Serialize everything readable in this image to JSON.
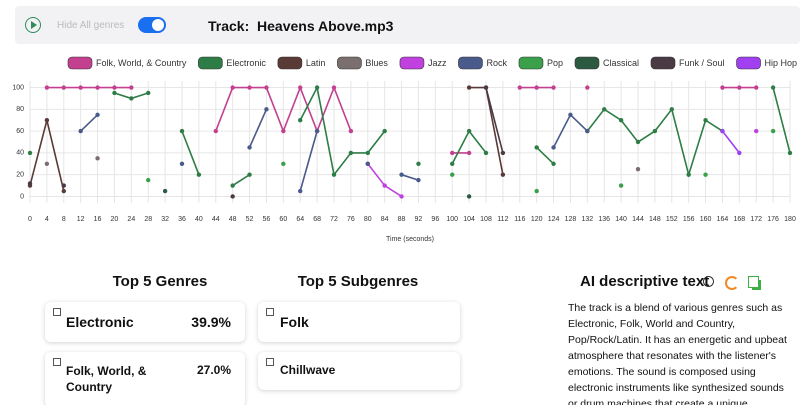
{
  "header": {
    "toggle_label": "Hide All genres",
    "track_label": "Track:",
    "track_name": "Heavens Above.mp3"
  },
  "chart_data": {
    "type": "line",
    "x_label": "Time (seconds)",
    "x": [
      0,
      4,
      8,
      12,
      16,
      20,
      24,
      28,
      32,
      36,
      40,
      44,
      48,
      52,
      56,
      60,
      64,
      68,
      72,
      76,
      80,
      84,
      88,
      92,
      96,
      100,
      104,
      108,
      112,
      116,
      120,
      124,
      128,
      132,
      136,
      140,
      144,
      148,
      152,
      156,
      160,
      164,
      168,
      172,
      176,
      180
    ],
    "xlim": [
      0,
      180
    ],
    "xticks": [
      0,
      4,
      8,
      12,
      16,
      20,
      24,
      28,
      32,
      36,
      40,
      44,
      48,
      52,
      56,
      60,
      64,
      68,
      72,
      76,
      80,
      84,
      88,
      92,
      96,
      100,
      104,
      108,
      112,
      116,
      120,
      124,
      128,
      132,
      136,
      140,
      144,
      148,
      152,
      156,
      160,
      164,
      168,
      172,
      176,
      180
    ],
    "ylim": [
      -6,
      106
    ],
    "yticks": [
      0,
      20,
      40,
      60,
      80,
      100
    ],
    "grid": true,
    "series": [
      {
        "name": "Folk, World, & Country",
        "color": "#c2408f",
        "values": [
          null,
          100,
          100,
          100,
          100,
          100,
          100,
          null,
          null,
          null,
          null,
          60,
          100,
          100,
          100,
          60,
          100,
          60,
          100,
          60,
          null,
          null,
          null,
          null,
          null,
          40,
          40,
          null,
          null,
          100,
          100,
          100,
          null,
          100,
          null,
          null,
          null,
          null,
          null,
          null,
          null,
          100,
          100,
          100,
          null,
          null
        ]
      },
      {
        "name": "Electronic",
        "color": "#2e7d46",
        "values": [
          40,
          null,
          null,
          null,
          null,
          95,
          90,
          95,
          null,
          60,
          20,
          null,
          10,
          20,
          null,
          null,
          70,
          100,
          20,
          40,
          40,
          60,
          null,
          30,
          null,
          30,
          60,
          40,
          null,
          null,
          45,
          30,
          null,
          60,
          80,
          70,
          50,
          60,
          80,
          20,
          70,
          60,
          null,
          null,
          100,
          40
        ]
      },
      {
        "name": "Latin",
        "color": "#5a3a36",
        "values": [
          10,
          70,
          5,
          null,
          null,
          null,
          null,
          null,
          null,
          null,
          null,
          null,
          null,
          null,
          null,
          null,
          null,
          null,
          null,
          null,
          null,
          null,
          null,
          null,
          null,
          null,
          100,
          100,
          20,
          null,
          null,
          null,
          null,
          null,
          null,
          null,
          null,
          null,
          null,
          null,
          null,
          null,
          null,
          null,
          null,
          null
        ]
      },
      {
        "name": "Blues",
        "color": "#7a6e6e",
        "values": [
          null,
          30,
          null,
          null,
          35,
          null,
          null,
          null,
          null,
          null,
          null,
          null,
          null,
          null,
          null,
          null,
          null,
          null,
          null,
          null,
          null,
          null,
          null,
          null,
          null,
          null,
          null,
          null,
          null,
          null,
          null,
          null,
          null,
          null,
          null,
          null,
          25,
          null,
          null,
          null,
          null,
          null,
          null,
          null,
          null,
          null
        ]
      },
      {
        "name": "Jazz",
        "color": "#c040e0",
        "values": [
          null,
          null,
          null,
          null,
          null,
          null,
          null,
          null,
          null,
          null,
          null,
          null,
          null,
          null,
          null,
          null,
          null,
          null,
          null,
          null,
          30,
          10,
          0,
          null,
          null,
          null,
          null,
          null,
          null,
          null,
          null,
          null,
          null,
          null,
          null,
          null,
          null,
          null,
          null,
          null,
          null,
          null,
          null,
          60,
          null,
          null
        ]
      },
      {
        "name": "Rock",
        "color": "#4a5a8a",
        "values": [
          null,
          null,
          null,
          60,
          75,
          null,
          null,
          null,
          null,
          30,
          null,
          null,
          null,
          45,
          80,
          null,
          5,
          60,
          null,
          null,
          30,
          null,
          20,
          15,
          null,
          null,
          null,
          null,
          null,
          null,
          null,
          45,
          75,
          60,
          null,
          null,
          null,
          null,
          null,
          null,
          null,
          null,
          null,
          null,
          null,
          null
        ]
      },
      {
        "name": "Pop",
        "color": "#3aa04a",
        "values": [
          null,
          null,
          null,
          null,
          null,
          null,
          null,
          15,
          null,
          null,
          null,
          null,
          null,
          null,
          null,
          30,
          null,
          null,
          null,
          null,
          null,
          null,
          null,
          null,
          null,
          20,
          null,
          null,
          null,
          null,
          5,
          null,
          null,
          null,
          null,
          10,
          null,
          null,
          null,
          null,
          20,
          null,
          null,
          null,
          60,
          null
        ]
      },
      {
        "name": "Classical",
        "color": "#2c5a40",
        "values": [
          null,
          null,
          null,
          null,
          null,
          null,
          null,
          null,
          5,
          null,
          null,
          null,
          null,
          null,
          null,
          null,
          null,
          null,
          null,
          null,
          null,
          null,
          null,
          null,
          null,
          null,
          0,
          null,
          null,
          null,
          null,
          null,
          null,
          null,
          null,
          null,
          null,
          null,
          null,
          null,
          null,
          null,
          null,
          null,
          null,
          null
        ]
      },
      {
        "name": "Funk / Soul",
        "color": "#4a3a44",
        "values": [
          12,
          null,
          10,
          null,
          null,
          null,
          null,
          null,
          null,
          null,
          null,
          null,
          0,
          null,
          null,
          null,
          null,
          null,
          null,
          null,
          null,
          null,
          null,
          null,
          null,
          null,
          null,
          100,
          40,
          null,
          null,
          null,
          null,
          null,
          null,
          null,
          null,
          null,
          null,
          null,
          null,
          null,
          null,
          null,
          null,
          null
        ]
      },
      {
        "name": "Hip Hop",
        "color": "#a040f0",
        "values": [
          null,
          null,
          null,
          null,
          null,
          null,
          null,
          null,
          null,
          null,
          null,
          null,
          null,
          null,
          null,
          null,
          null,
          null,
          null,
          null,
          null,
          null,
          null,
          null,
          null,
          null,
          null,
          null,
          null,
          null,
          null,
          null,
          null,
          null,
          null,
          null,
          null,
          null,
          null,
          null,
          null,
          60,
          40,
          null,
          null,
          null
        ]
      }
    ]
  },
  "top_genres": {
    "title": "Top 5 Genres",
    "items": [
      {
        "name": "Electronic",
        "percent": "39.9%"
      },
      {
        "name": "Folk, World, & Country",
        "percent": "27.0%"
      }
    ]
  },
  "top_subgenres": {
    "title": "Top 5 Subgenres",
    "items": [
      "Folk",
      "Chillwave"
    ]
  },
  "ai_text": {
    "title": "AI descriptive text",
    "body": "The track is a blend of various genres such as Electronic, Folk, World and Country, Pop/Rock/Latin. It has an energetic and upbeat atmosphere that resonates with the listener's emotions. The sound is composed using electronic instruments like synthesized sounds or drum machines that create a unique"
  }
}
